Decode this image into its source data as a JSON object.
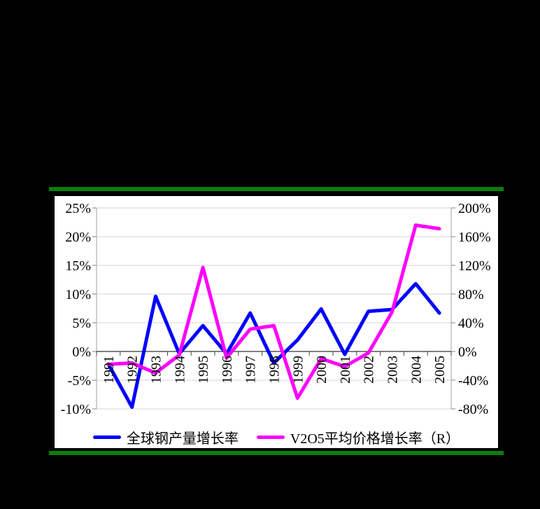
{
  "page": {
    "background_color": "#000000",
    "divider_color": "#0D7D0D",
    "panel_color": "#FFFFFF"
  },
  "chart_data": {
    "type": "line",
    "title": "",
    "categories": [
      "1991",
      "1992",
      "1993",
      "1994",
      "1995",
      "1996",
      "1997",
      "1998",
      "1999",
      "2000",
      "2001",
      "2002",
      "2003",
      "2004",
      "2005"
    ],
    "series": [
      {
        "name": "全球钢产量增长率",
        "axis": "left",
        "color": "#0000FF",
        "values_pct": [
          -2.2,
          -9.7,
          9.6,
          -0.4,
          4.5,
          -0.4,
          6.7,
          -2.0,
          2.0,
          7.4,
          -0.5,
          7.0,
          7.3,
          11.8,
          6.7
        ]
      },
      {
        "name": "V2O5平均价格增长率（R）",
        "axis": "right",
        "color": "#FF00FF",
        "values_pct": [
          -18,
          -16,
          -30,
          -5,
          117,
          -9,
          31,
          36,
          -65,
          -10,
          -21,
          -2,
          55,
          176,
          171
        ]
      }
    ],
    "left_axis": {
      "min": -10,
      "max": 25,
      "step": 5,
      "tick_labels": [
        "25%",
        "20%",
        "15%",
        "10%",
        "5%",
        "0%",
        "-5%",
        "-10%"
      ]
    },
    "right_axis": {
      "min": -80,
      "max": 200,
      "step": 40,
      "tick_labels": [
        "200%",
        "160%",
        "120%",
        "80%",
        "40%",
        "0%",
        "-40%",
        "-80%"
      ]
    },
    "grid": true,
    "legend_position": "bottom",
    "x_tick_label_rotation_deg": -90
  }
}
